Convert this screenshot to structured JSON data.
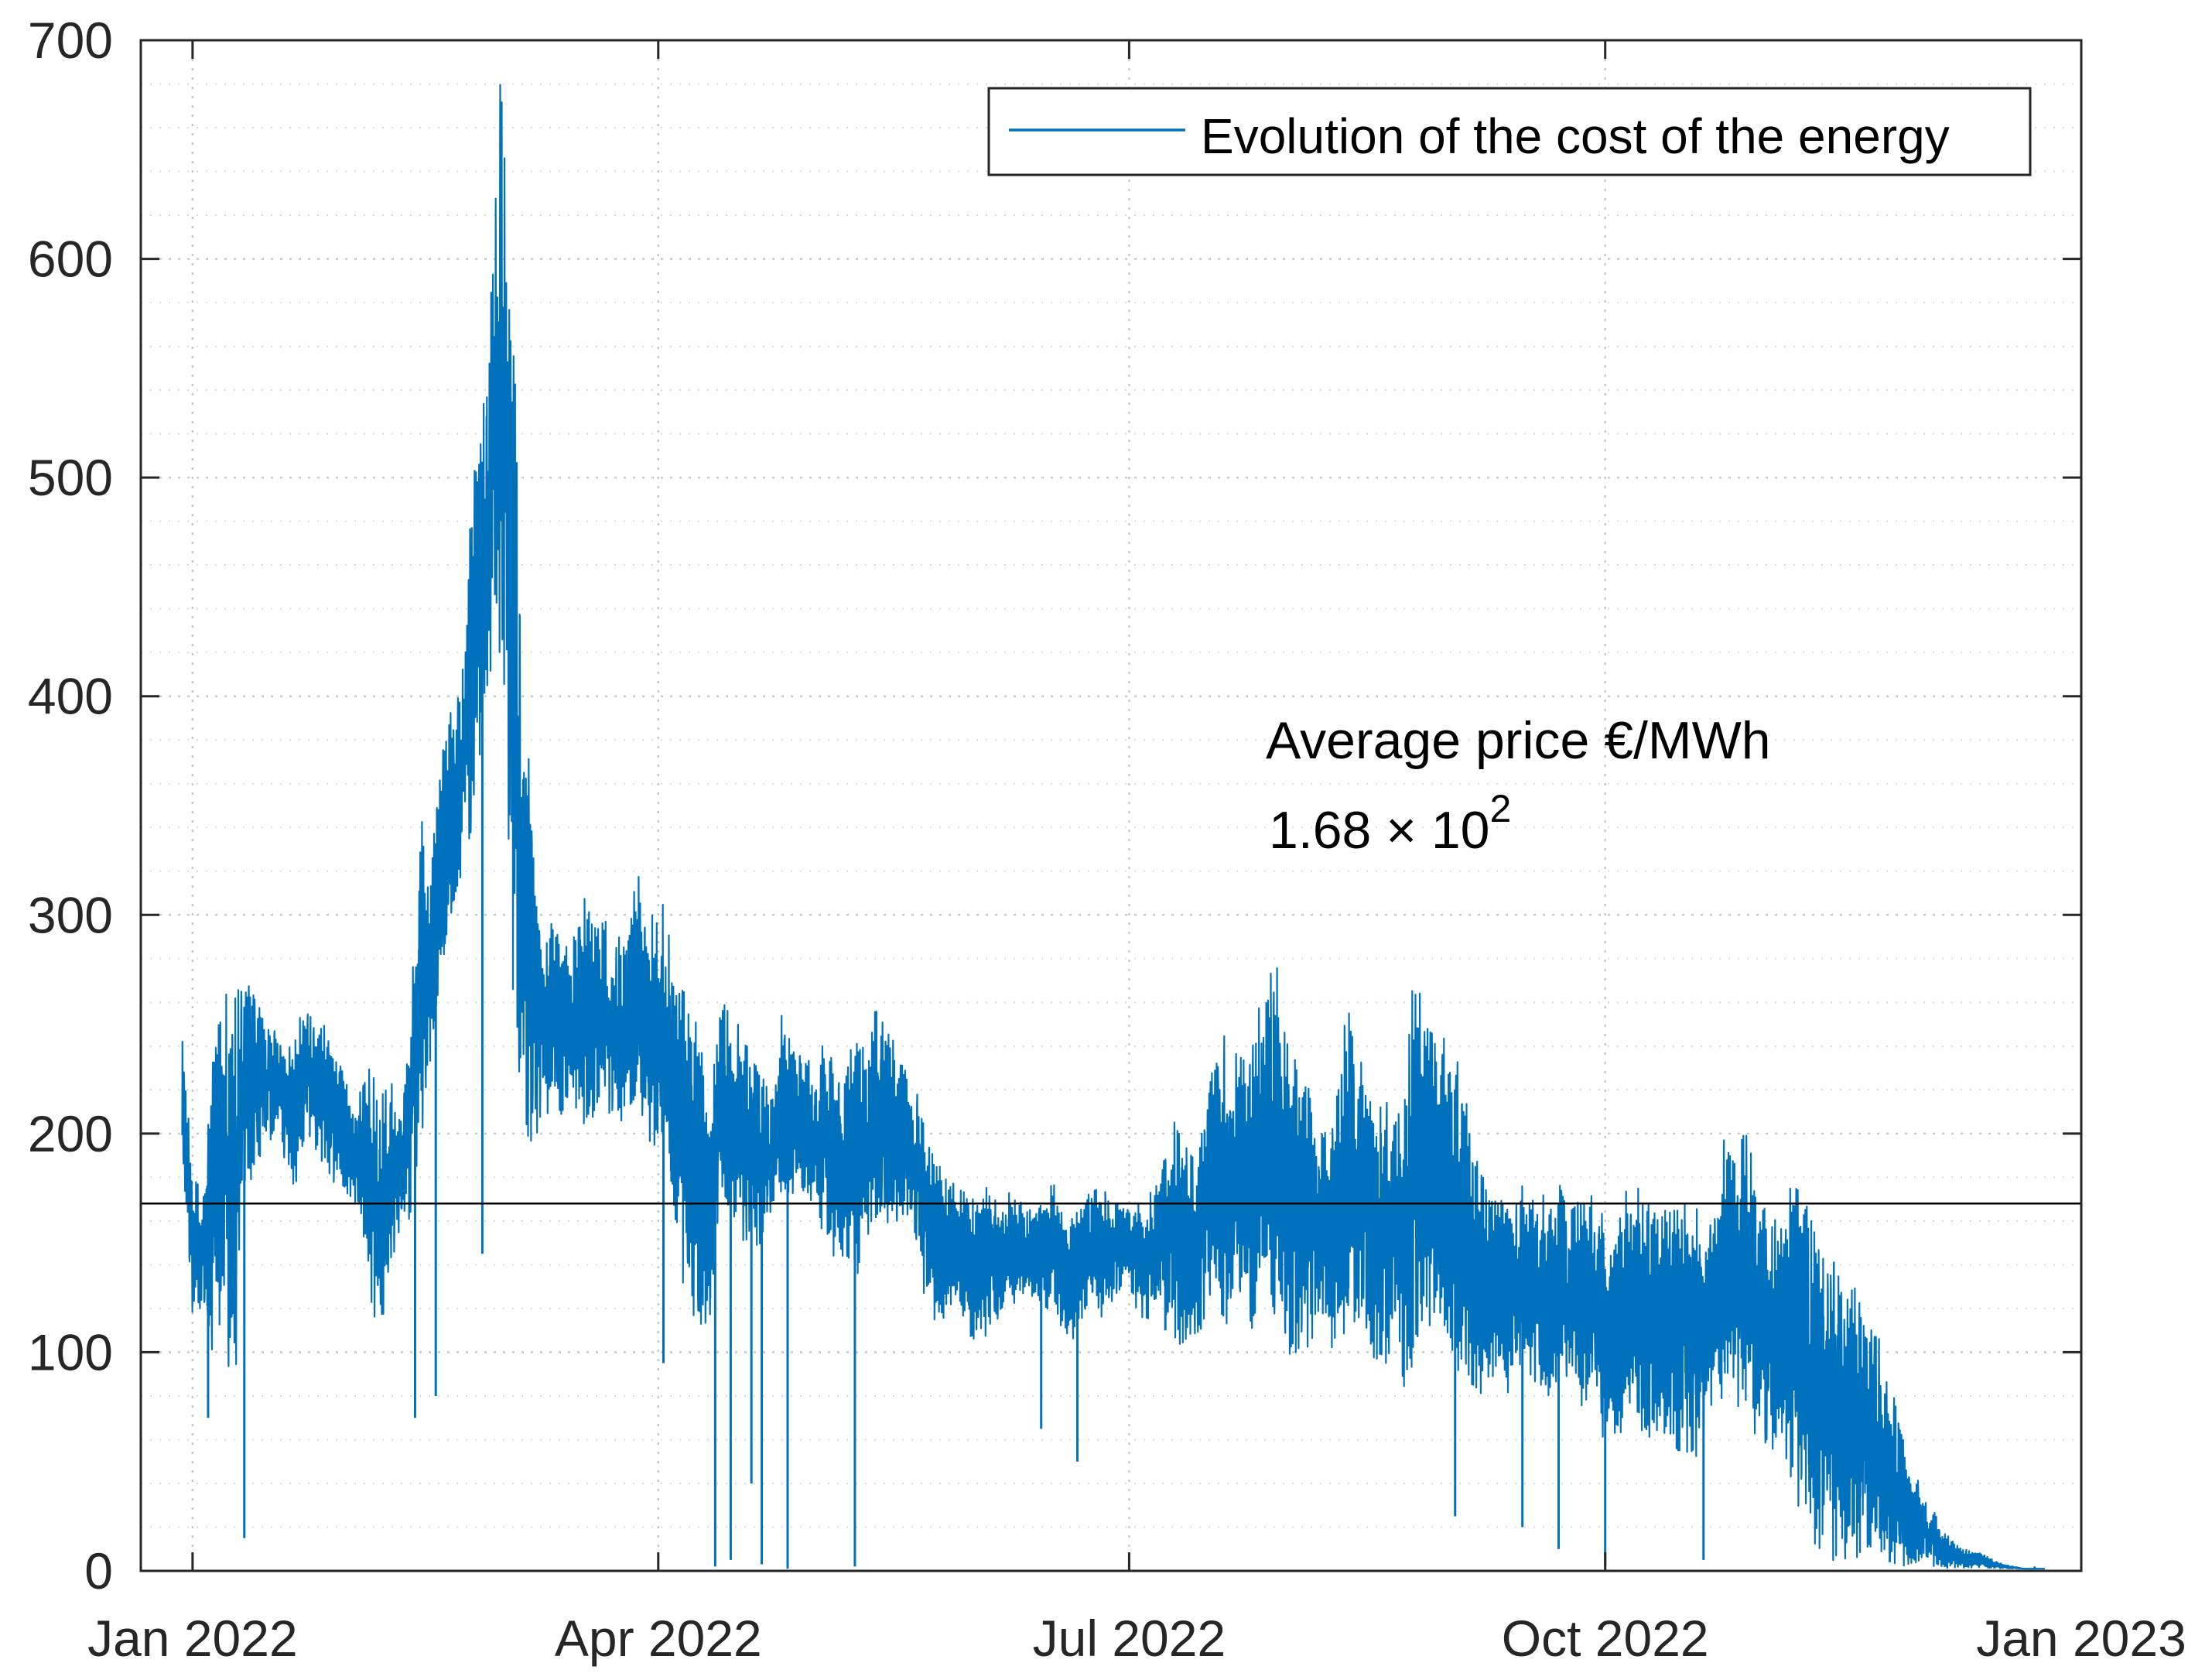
{
  "chart_data": {
    "type": "line",
    "title": "",
    "xlabel": "",
    "ylabel": "",
    "ylim": [
      0,
      700
    ],
    "y_ticks": [
      0,
      100,
      200,
      300,
      400,
      500,
      600,
      700
    ],
    "y_tick_labels": [
      "0",
      "100",
      "200",
      "300",
      "400",
      "500",
      "600",
      "700"
    ],
    "x_range_days": [
      -10,
      365
    ],
    "x_ticks": [
      {
        "day": 0,
        "label": "Jan 2022"
      },
      {
        "day": 90,
        "label": "Apr 2022"
      },
      {
        "day": 181,
        "label": "Jul 2022"
      },
      {
        "day": 273,
        "label": "Oct 2022"
      },
      {
        "day": 365,
        "label": "Jan 2023"
      }
    ],
    "grid": true,
    "minor_grid": true,
    "legend": {
      "location": "top-right",
      "entries": [
        "Evolution of the cost of the energy"
      ]
    },
    "series": [
      {
        "name": "Evolution of the cost of the energy",
        "color": "#0072BD",
        "x_start_day": -2,
        "x_end_day": 362,
        "sample_days": [
          -2,
          0,
          2,
          4,
          6,
          8,
          10,
          12,
          14,
          16,
          18,
          20,
          22,
          24,
          26,
          28,
          30,
          32,
          34,
          36,
          38,
          40,
          42,
          44,
          46,
          48,
          50,
          52,
          54,
          56,
          58,
          60,
          62,
          63,
          64,
          65,
          66,
          67,
          68,
          70,
          72,
          74,
          76,
          78,
          80,
          82,
          84,
          86,
          88,
          90,
          92,
          94,
          96,
          98,
          100,
          102,
          104,
          106,
          108,
          110,
          112,
          114,
          116,
          118,
          120,
          122,
          124,
          126,
          128,
          130,
          132,
          134,
          136,
          138,
          140,
          142,
          144,
          146,
          148,
          150,
          152,
          154,
          156,
          158,
          160,
          162,
          164,
          166,
          168,
          170,
          172,
          174,
          176,
          178,
          180,
          182,
          184,
          186,
          188,
          190,
          192,
          194,
          196,
          198,
          200,
          202,
          204,
          206,
          208,
          210,
          212,
          214,
          216,
          218,
          220,
          222,
          224,
          226,
          228,
          230,
          232,
          234,
          236,
          238,
          240,
          242,
          244,
          246,
          248,
          250,
          252,
          254,
          256,
          258,
          260,
          262,
          264,
          266,
          268,
          270,
          272,
          274,
          276,
          278,
          280,
          282,
          284,
          286,
          288,
          290,
          292,
          294,
          296,
          298,
          300,
          302,
          304,
          306,
          308,
          310,
          312,
          314,
          316,
          318,
          320,
          322,
          324,
          326,
          328,
          330,
          332,
          334,
          336,
          338,
          340,
          342,
          344,
          346,
          348,
          350,
          352,
          354,
          356,
          358,
          360,
          362
        ],
        "envelope_upper": [
          250,
          190,
          170,
          250,
          270,
          260,
          280,
          270,
          260,
          250,
          240,
          250,
          260,
          255,
          250,
          240,
          230,
          220,
          240,
          220,
          230,
          210,
          250,
          350,
          320,
          380,
          400,
          410,
          500,
          520,
          650,
          700,
          600,
          480,
          420,
          390,
          330,
          300,
          290,
          300,
          290,
          300,
          310,
          300,
          300,
          290,
          300,
          320,
          300,
          310,
          300,
          280,
          260,
          250,
          230,
          270,
          260,
          250,
          240,
          230,
          220,
          260,
          250,
          240,
          230,
          250,
          240,
          230,
          250,
          240,
          260,
          250,
          240,
          230,
          220,
          200,
          190,
          185,
          180,
          170,
          175,
          180,
          170,
          175,
          170,
          165,
          175,
          180,
          170,
          165,
          170,
          180,
          175,
          170,
          175,
          170,
          165,
          180,
          200,
          210,
          200,
          190,
          230,
          260,
          240,
          250,
          230,
          280,
          270,
          300,
          240,
          230,
          220,
          210,
          200,
          250,
          260,
          240,
          220,
          230,
          210,
          230,
          280,
          270,
          260,
          250,
          240,
          220,
          200,
          190,
          180,
          170,
          175,
          180,
          170,
          175,
          180,
          170,
          175,
          180,
          170,
          160,
          170,
          180,
          175,
          170,
          165,
          175,
          180,
          170,
          160,
          180,
          200,
          190,
          210,
          180,
          170,
          160,
          175,
          180,
          170,
          160,
          150,
          150,
          140,
          130,
          120,
          110,
          90,
          70,
          50,
          40,
          30,
          20,
          15,
          10,
          10,
          8,
          5,
          3,
          2,
          1,
          1,
          1
        ],
        "envelope_lower": [
          180,
          110,
          120,
          90,
          110,
          70,
          170,
          180,
          190,
          200,
          180,
          170,
          200,
          190,
          180,
          175,
          170,
          160,
          130,
          100,
          120,
          150,
          160,
          190,
          230,
          260,
          280,
          320,
          330,
          370,
          400,
          380,
          250,
          200,
          190,
          180,
          190,
          200,
          210,
          205,
          200,
          210,
          190,
          205,
          210,
          200,
          205,
          210,
          195,
          190,
          170,
          140,
          110,
          90,
          100,
          170,
          160,
          150,
          140,
          150,
          160,
          170,
          165,
          170,
          160,
          150,
          140,
          145,
          130,
          150,
          160,
          155,
          150,
          160,
          140,
          120,
          110,
          115,
          120,
          105,
          100,
          110,
          115,
          120,
          125,
          120,
          115,
          120,
          110,
          100,
          110,
          120,
          115,
          120,
          130,
          120,
          110,
          120,
          110,
          100,
          105,
          100,
          110,
          120,
          100,
          110,
          105,
          120,
          110,
          100,
          90,
          95,
          100,
          110,
          100,
          95,
          100,
          110,
          95,
          90,
          100,
          80,
          90,
          100,
          110,
          90,
          85,
          80,
          75,
          85,
          90,
          80,
          85,
          90,
          80,
          75,
          85,
          80,
          75,
          70,
          60,
          50,
          60,
          70,
          55,
          60,
          65,
          55,
          50,
          40,
          60,
          70,
          80,
          75,
          70,
          60,
          55,
          50,
          40,
          30,
          20,
          10,
          5,
          3,
          2,
          1,
          1,
          1,
          1,
          1,
          1,
          1,
          1,
          1,
          1,
          1,
          1,
          1,
          1,
          1,
          1,
          1,
          1,
          1
        ],
        "spikes": [
          {
            "day": 3,
            "value": 70
          },
          {
            "day": 10,
            "value": 15
          },
          {
            "day": 43,
            "value": 70
          },
          {
            "day": 47,
            "value": 80
          },
          {
            "day": 56,
            "value": 145
          },
          {
            "day": 91,
            "value": 95
          },
          {
            "day": 101,
            "value": 2
          },
          {
            "day": 104,
            "value": 5
          },
          {
            "day": 108,
            "value": 40
          },
          {
            "day": 110,
            "value": 3
          },
          {
            "day": 115,
            "value": 1
          },
          {
            "day": 128,
            "value": 2
          },
          {
            "day": 164,
            "value": 65
          },
          {
            "day": 171,
            "value": 50
          },
          {
            "day": 188,
            "value": 110
          },
          {
            "day": 244,
            "value": 25
          },
          {
            "day": 257,
            "value": 20
          },
          {
            "day": 264,
            "value": 10
          },
          {
            "day": 273,
            "value": 2
          },
          {
            "day": 292,
            "value": 5
          },
          {
            "day": 328,
            "value": 4
          },
          {
            "day": 356,
            "value": 2
          }
        ]
      }
    ],
    "reference_lines": [
      {
        "name": "Average price",
        "value": 168,
        "color": "#000000"
      }
    ],
    "annotations": [
      {
        "text": "Average price €/MWh"
      },
      {
        "text": "1.68 × 10",
        "superscript": "2"
      }
    ]
  },
  "colors": {
    "line": "#0072BD",
    "axis": "#262626",
    "grid": "#c8c8c8"
  }
}
